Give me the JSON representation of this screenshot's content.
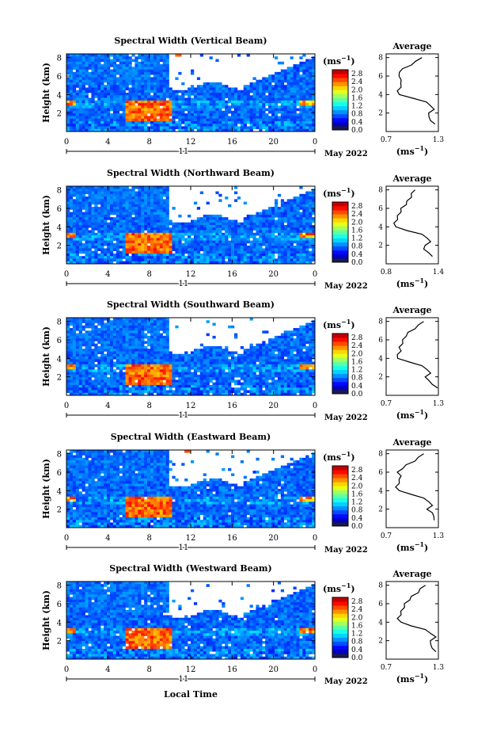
{
  "figure": {
    "bottom_label": "Local Time",
    "colorbar": {
      "unit": "(ms",
      "unit_exp": "−1",
      "ticks": [
        "0.0",
        "0.4",
        "0.8",
        "1.2",
        "1.6",
        "2.0",
        "2.4",
        "2.8"
      ]
    },
    "profile_title": "Average",
    "profile_unit": "(ms",
    "profile_unit_exp": "−1",
    "ylabel": "Height (km)"
  },
  "chart_data": [
    {
      "type": "heatmap",
      "title": "Spectral Width (Vertical Beam)",
      "ylabel": "Height (km)",
      "x_ticks": [
        "0",
        "4",
        "8",
        "12",
        "16",
        "20",
        "0"
      ],
      "y_ticks": [
        "2",
        "4",
        "6",
        "8"
      ],
      "xlim": [
        0,
        24
      ],
      "ylim": [
        0,
        8.4
      ],
      "date_marker": "11",
      "date_label": "May 2022",
      "colorbar_range": [
        0.0,
        3.0
      ],
      "profile": {
        "title": "Average",
        "xlim": [
          0.7,
          1.3
        ],
        "x_ticks": [
          "0.7",
          "1.3"
        ],
        "y_ticks": [
          "2",
          "4",
          "6",
          "8"
        ],
        "heights": [
          0.8,
          1.2,
          1.6,
          2.0,
          2.4,
          2.8,
          3.2,
          3.6,
          4.0,
          4.4,
          4.8,
          5.2,
          5.6,
          6.0,
          6.4,
          6.8,
          7.2,
          7.6,
          8.0
        ],
        "values": [
          1.25,
          1.22,
          1.18,
          1.2,
          1.24,
          1.22,
          1.15,
          1.02,
          0.84,
          0.84,
          0.86,
          0.88,
          0.86,
          0.86,
          0.84,
          0.9,
          0.98,
          1.05,
          1.1
        ]
      }
    },
    {
      "type": "heatmap",
      "title": "Spectral Width (Northward Beam)",
      "ylabel": "Height (km)",
      "x_ticks": [
        "0",
        "4",
        "8",
        "12",
        "16",
        "20",
        "0"
      ],
      "y_ticks": [
        "2",
        "4",
        "6",
        "8"
      ],
      "xlim": [
        0,
        24
      ],
      "ylim": [
        0,
        8.4
      ],
      "date_marker": "11",
      "date_label": "May 2022",
      "colorbar_range": [
        0.0,
        3.0
      ],
      "profile": {
        "title": "Average",
        "xlim": [
          0.8,
          1.4
        ],
        "x_ticks": [
          "0.8",
          "1.4"
        ],
        "y_ticks": [
          "2",
          "4",
          "6",
          "8"
        ],
        "heights": [
          0.8,
          1.2,
          1.6,
          2.0,
          2.4,
          2.8,
          3.2,
          3.6,
          4.0,
          4.4,
          4.8,
          5.2,
          5.6,
          6.0,
          6.4,
          6.8,
          7.2,
          7.6,
          8.0
        ],
        "values": [
          1.32,
          1.3,
          1.22,
          1.26,
          1.3,
          1.28,
          1.2,
          1.05,
          0.9,
          0.9,
          0.92,
          0.94,
          0.96,
          0.98,
          1.02,
          1.05,
          1.08,
          1.1,
          1.12
        ]
      }
    },
    {
      "type": "heatmap",
      "title": "Spectral Width (Southward Beam)",
      "ylabel": "Height (km)",
      "x_ticks": [
        "0",
        "4",
        "8",
        "12",
        "16",
        "20",
        "0"
      ],
      "y_ticks": [
        "2",
        "4",
        "6",
        "8"
      ],
      "xlim": [
        0,
        24
      ],
      "ylim": [
        0,
        8.4
      ],
      "date_marker": "11",
      "date_label": "May 2022",
      "colorbar_range": [
        0.0,
        3.0
      ],
      "profile": {
        "title": "Average",
        "xlim": [
          0.7,
          1.3
        ],
        "x_ticks": [
          "0.7",
          "1.3"
        ],
        "y_ticks": [
          "2",
          "4",
          "6",
          "8"
        ],
        "heights": [
          0.8,
          1.2,
          1.6,
          2.0,
          2.4,
          2.8,
          3.2,
          3.6,
          4.0,
          4.4,
          4.8,
          5.2,
          5.6,
          6.0,
          6.4,
          6.8,
          7.2,
          7.6,
          8.0
        ],
        "values": [
          1.28,
          1.24,
          1.18,
          1.16,
          1.2,
          1.18,
          1.1,
          0.98,
          0.82,
          0.84,
          0.86,
          0.86,
          0.88,
          0.9,
          0.92,
          0.96,
          1.02,
          1.08,
          1.12
        ]
      }
    },
    {
      "type": "heatmap",
      "title": "Spectral Width (Eastward Beam)",
      "ylabel": "Height (km)",
      "x_ticks": [
        "0",
        "4",
        "8",
        "12",
        "16",
        "20",
        "0"
      ],
      "y_ticks": [
        "2",
        "4",
        "6",
        "8"
      ],
      "xlim": [
        0,
        24
      ],
      "ylim": [
        0,
        8.4
      ],
      "date_marker": "11",
      "date_label": "May 2022",
      "colorbar_range": [
        0.0,
        3.0
      ],
      "profile": {
        "title": "Average",
        "xlim": [
          0.7,
          1.3
        ],
        "x_ticks": [
          "0.7",
          "1.3"
        ],
        "y_ticks": [
          "2",
          "4",
          "6",
          "8"
        ],
        "heights": [
          0.8,
          1.2,
          1.6,
          2.0,
          2.4,
          2.8,
          3.2,
          3.6,
          4.0,
          4.4,
          4.8,
          5.2,
          5.6,
          6.0,
          6.4,
          6.8,
          7.2,
          7.6,
          8.0
        ],
        "values": [
          1.24,
          1.26,
          1.22,
          1.18,
          1.22,
          1.2,
          1.12,
          1.0,
          0.84,
          0.82,
          0.84,
          0.86,
          0.86,
          0.84,
          0.88,
          0.94,
          1.02,
          1.08,
          1.12
        ]
      }
    },
    {
      "type": "heatmap",
      "title": "Spectral Width (Westward Beam)",
      "ylabel": "Height (km)",
      "x_ticks": [
        "0",
        "4",
        "8",
        "12",
        "16",
        "20",
        "0"
      ],
      "y_ticks": [
        "2",
        "4",
        "6",
        "8"
      ],
      "xlim": [
        0,
        24
      ],
      "ylim": [
        0,
        8.4
      ],
      "date_marker": "11",
      "date_label": "May 2022",
      "colorbar_range": [
        0.0,
        3.0
      ],
      "profile": {
        "title": "Average",
        "xlim": [
          0.7,
          1.3
        ],
        "x_ticks": [
          "0.7",
          "1.3"
        ],
        "y_ticks": [
          "2",
          "4",
          "6",
          "8"
        ],
        "heights": [
          0.8,
          1.2,
          1.6,
          2.0,
          2.4,
          2.8,
          3.2,
          3.6,
          4.0,
          4.4,
          4.8,
          5.2,
          5.6,
          6.0,
          6.4,
          6.8,
          7.2,
          7.6,
          8.0
        ],
        "values": [
          1.26,
          1.24,
          1.2,
          1.22,
          1.26,
          1.22,
          1.14,
          1.0,
          0.86,
          0.84,
          0.86,
          0.88,
          0.9,
          0.92,
          0.96,
          1.0,
          1.06,
          1.1,
          1.14
        ]
      }
    }
  ]
}
